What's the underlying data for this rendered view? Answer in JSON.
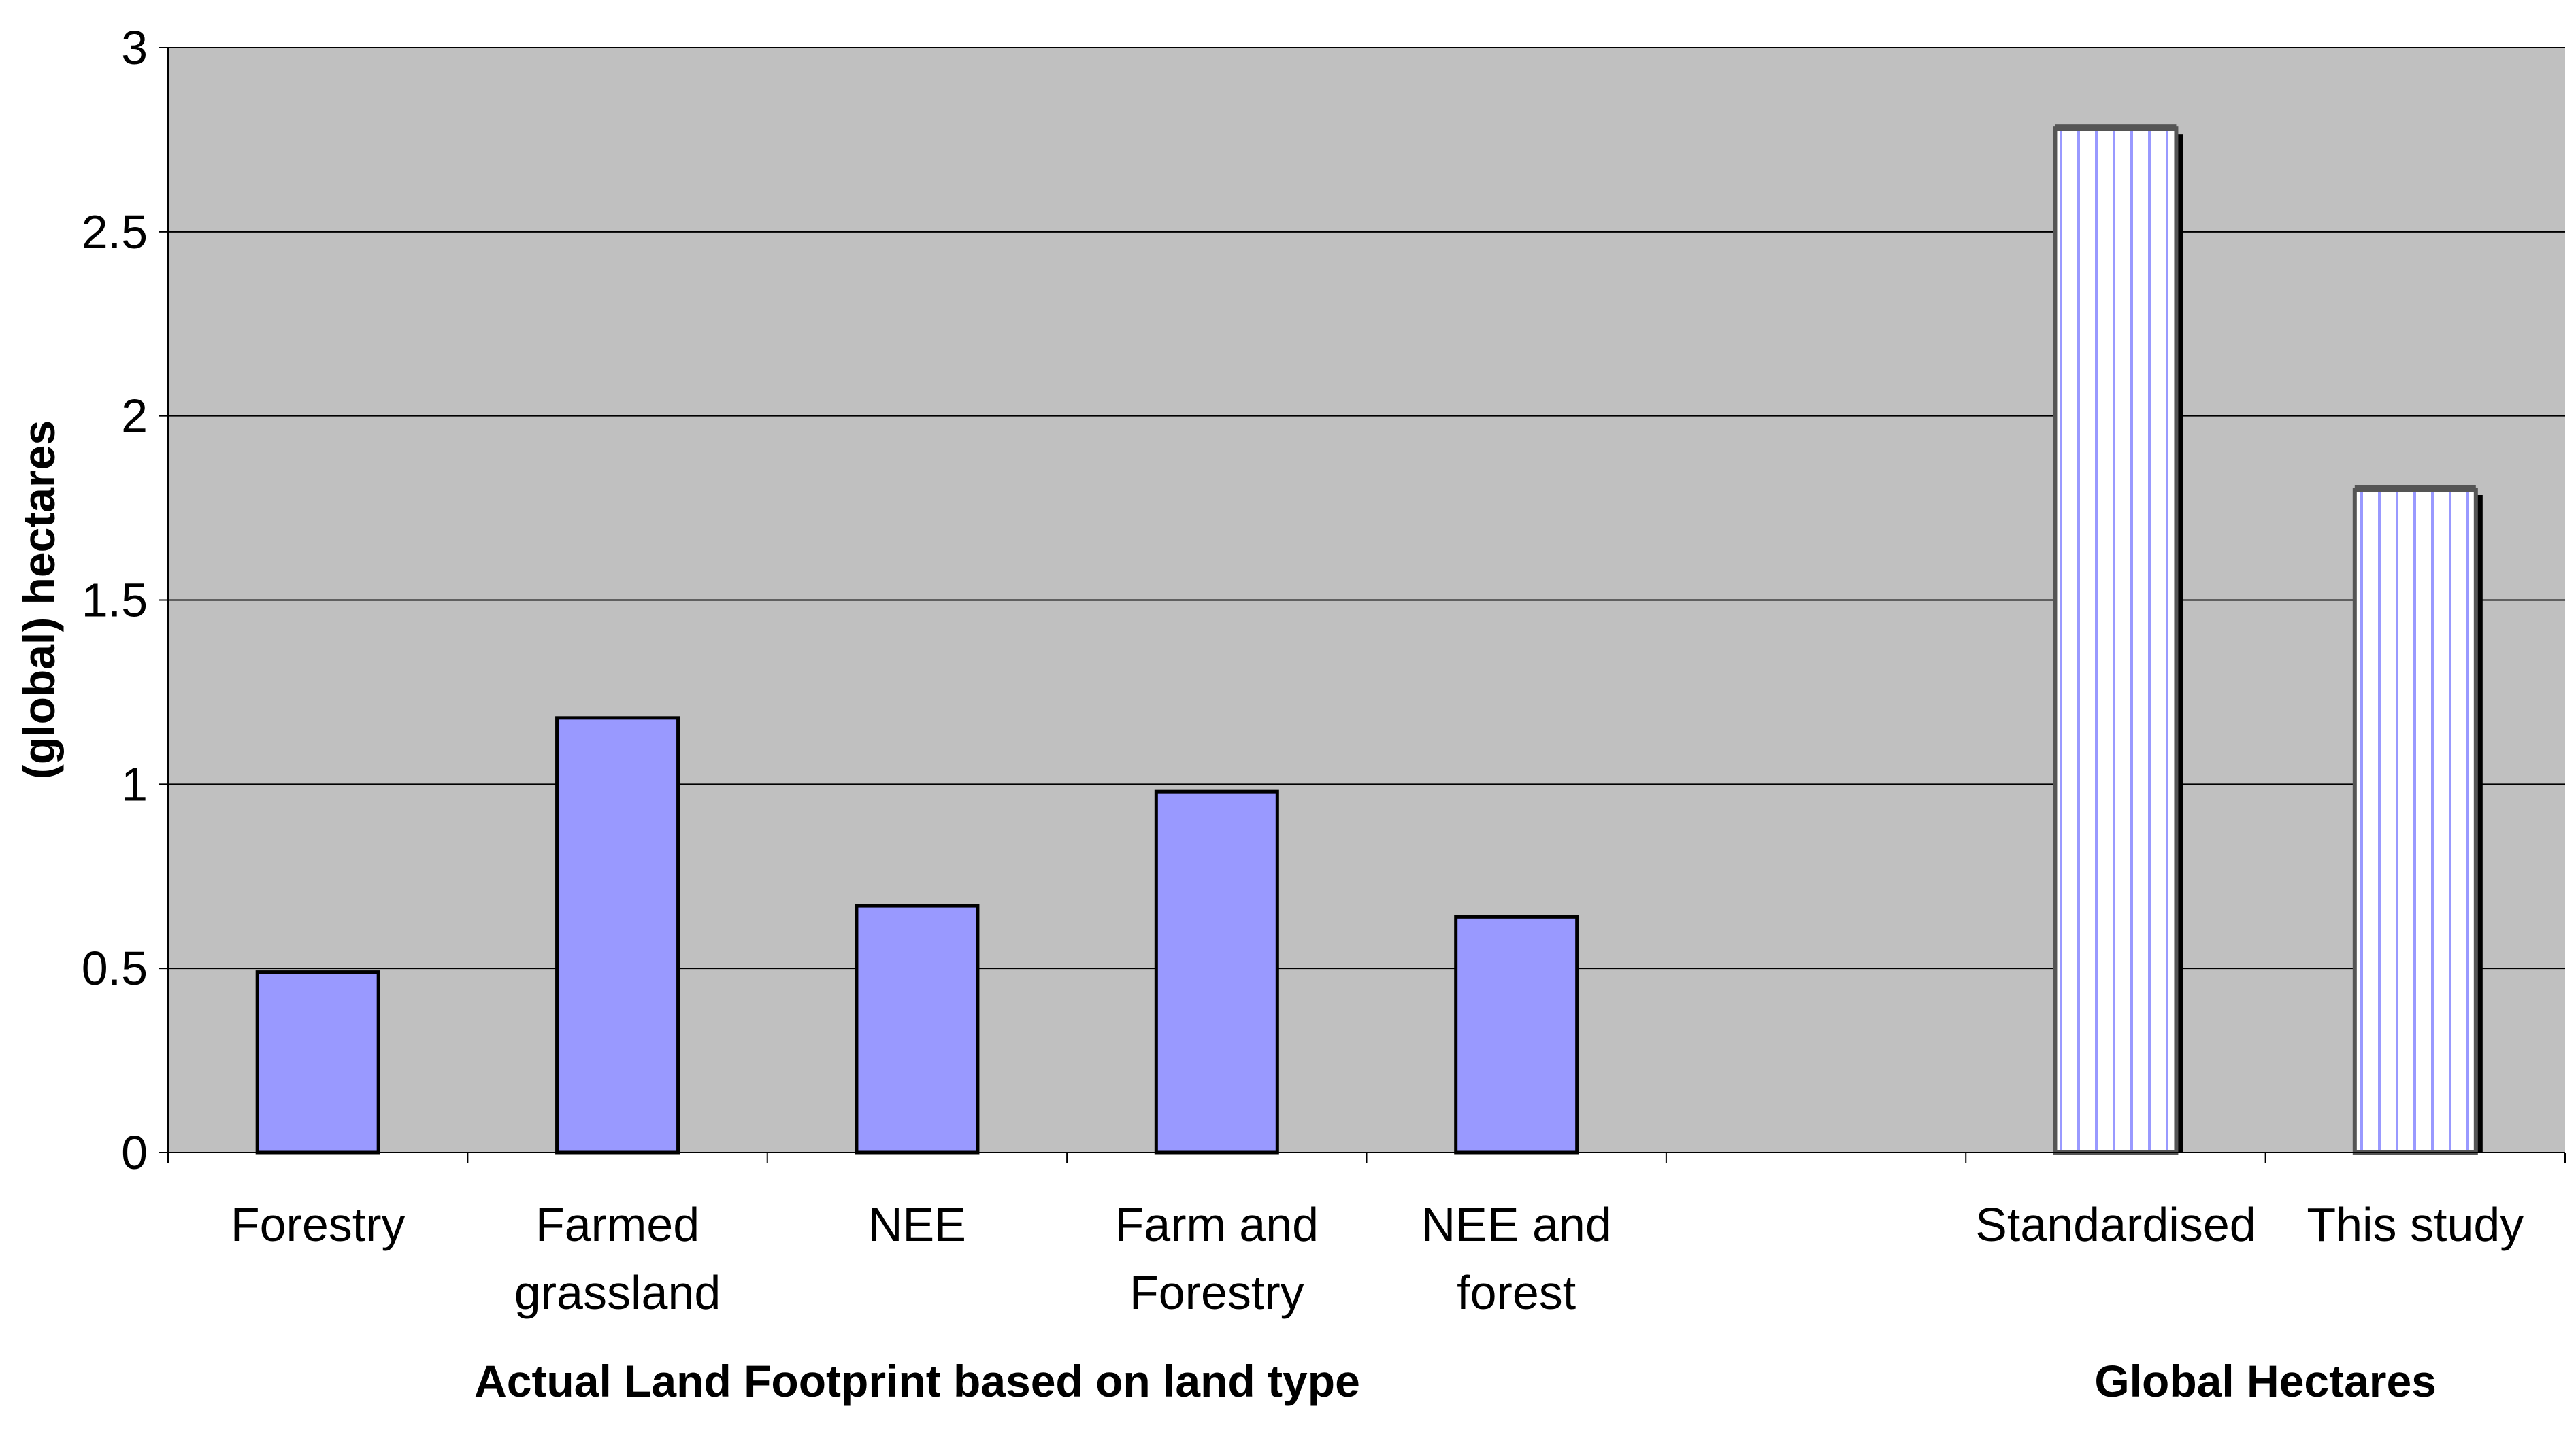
{
  "chart_data": {
    "type": "bar",
    "ylabel": "(global) hectares",
    "ylim": [
      0,
      3
    ],
    "yticks": [
      "0",
      "0.5",
      "1",
      "1.5",
      "2",
      "2.5",
      "3"
    ],
    "grid": true,
    "categories": [
      [
        "Forestry"
      ],
      [
        "Farmed",
        "grassland"
      ],
      [
        "NEE"
      ],
      [
        "Farm and",
        "Forestry"
      ],
      [
        "NEE and",
        "forest"
      ],
      [],
      [
        "Standardised"
      ],
      [
        "This study"
      ]
    ],
    "series": [
      {
        "values": [
          0.49,
          1.18,
          0.67,
          0.98,
          0.64,
          null,
          null,
          null
        ],
        "color": "#9999ff",
        "pattern": "solid"
      },
      {
        "values": [
          null,
          null,
          null,
          null,
          null,
          null,
          2.78,
          1.8
        ],
        "color": "#ffffff",
        "pattern": "vertical-stripes"
      }
    ],
    "group_labels": [
      {
        "label": "Actual Land Footprint based on land type",
        "span": [
          0,
          4
        ]
      },
      {
        "label": "Global Hectares",
        "span": [
          6,
          7
        ]
      }
    ],
    "colors": {
      "plot_background": "#c0c0c0",
      "bar_fill": "#9999ff",
      "stripe": "#9999ff",
      "gridline": "#000000"
    }
  }
}
